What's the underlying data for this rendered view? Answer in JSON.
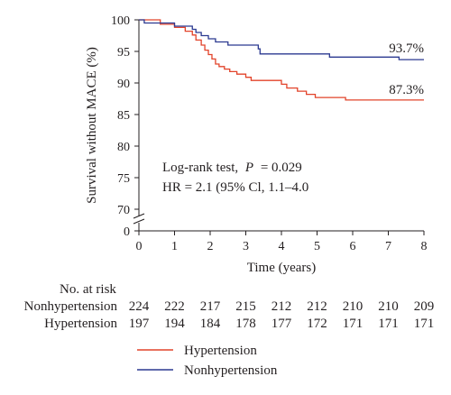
{
  "chart_data": {
    "type": "line",
    "ylabel": "Survival without MACE (%)",
    "xlabel": "Time (years)",
    "xlim": [
      0,
      8
    ],
    "ylim": [
      70,
      100
    ],
    "y_axis_zero_tick": "0",
    "x_ticks": [
      "0",
      "1",
      "2",
      "3",
      "4",
      "5",
      "6",
      "7",
      "8"
    ],
    "y_ticks": [
      "70",
      "75",
      "80",
      "85",
      "90",
      "95",
      "100"
    ],
    "grid": false,
    "annotation_lines": [
      "Log-rank test, P = 0.029",
      "HR = 2.1 (95% CI, 1.1–4.0"
    ],
    "annotation_parts": {
      "l1_prefix": "Log-rank test,",
      "l1_p": "P",
      "l1_suffix": "= 0.029",
      "l2": "HR = 2.1 (95% Cl, 1.1–4.0"
    },
    "series": [
      {
        "name": "Hypertension",
        "color": "#e2432a",
        "end_label": "87.3%",
        "steps": [
          [
            0,
            100
          ],
          [
            0.3,
            100
          ],
          [
            0.6,
            99.3
          ],
          [
            1.0,
            98.8
          ],
          [
            1.3,
            98.2
          ],
          [
            1.5,
            97.6
          ],
          [
            1.6,
            96.8
          ],
          [
            1.75,
            96.0
          ],
          [
            1.85,
            95.2
          ],
          [
            1.95,
            94.5
          ],
          [
            2.05,
            93.8
          ],
          [
            2.15,
            93.0
          ],
          [
            2.25,
            92.6
          ],
          [
            2.4,
            92.2
          ],
          [
            2.55,
            91.8
          ],
          [
            2.75,
            91.4
          ],
          [
            3.0,
            90.9
          ],
          [
            3.15,
            90.4
          ],
          [
            4.0,
            89.8
          ],
          [
            4.15,
            89.2
          ],
          [
            4.45,
            88.7
          ],
          [
            4.7,
            88.2
          ],
          [
            4.95,
            87.7
          ],
          [
            5.8,
            87.3
          ],
          [
            8.0,
            87.3
          ]
        ]
      },
      {
        "name": "Nonhypertension",
        "color": "#2b3990",
        "end_label": "93.7%",
        "steps": [
          [
            0,
            100
          ],
          [
            0.15,
            99.5
          ],
          [
            0.85,
            99.5
          ],
          [
            1.0,
            99.0
          ],
          [
            1.5,
            98.5
          ],
          [
            1.6,
            98.0
          ],
          [
            1.75,
            97.5
          ],
          [
            1.95,
            97.0
          ],
          [
            2.15,
            96.5
          ],
          [
            2.5,
            96.0
          ],
          [
            3.0,
            96.0
          ],
          [
            3.35,
            95.4
          ],
          [
            3.4,
            94.6
          ],
          [
            5.3,
            94.6
          ],
          [
            5.35,
            94.1
          ],
          [
            7.25,
            94.1
          ],
          [
            7.3,
            93.7
          ],
          [
            8.0,
            93.7
          ]
        ]
      }
    ],
    "risk_table": {
      "title": "No. at risk",
      "rows": [
        {
          "label": "Nonhypertension",
          "values": [
            "224",
            "222",
            "217",
            "215",
            "212",
            "212",
            "210",
            "210",
            "209"
          ]
        },
        {
          "label": "Hypertension",
          "values": [
            "197",
            "194",
            "184",
            "178",
            "177",
            "172",
            "171",
            "171",
            "171"
          ]
        }
      ]
    },
    "legend_placement": "bottom-center"
  }
}
